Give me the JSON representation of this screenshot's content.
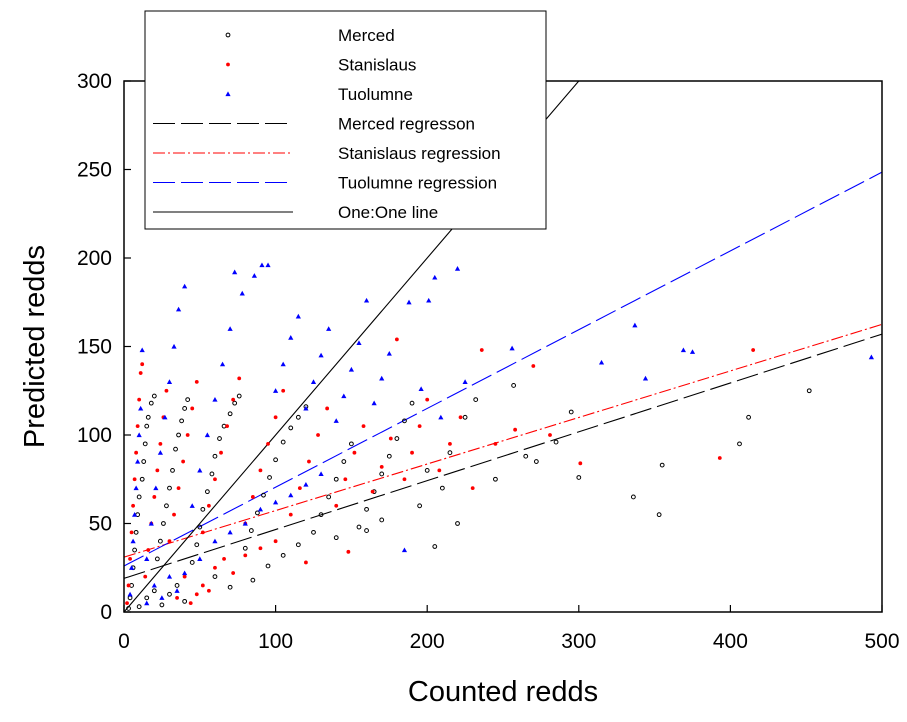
{
  "chart_data": {
    "type": "scatter",
    "title": "",
    "xlabel": "Counted redds",
    "ylabel": "Predicted redds",
    "xlim": [
      0,
      500
    ],
    "ylim": [
      0,
      300
    ],
    "xticks": [
      "0",
      "100",
      "200",
      "300",
      "400",
      "500"
    ],
    "yticks": [
      "0",
      "50",
      "100",
      "150",
      "200",
      "250",
      "300"
    ],
    "grid": false,
    "legend_position": "top-left",
    "series": [
      {
        "name": "Merced",
        "kind": "points",
        "marker": "open-circle",
        "color": "#000000",
        "points": [
          [
            3,
            2
          ],
          [
            4,
            8
          ],
          [
            5,
            15
          ],
          [
            6,
            25
          ],
          [
            7,
            35
          ],
          [
            8,
            45
          ],
          [
            9,
            55
          ],
          [
            10,
            65
          ],
          [
            12,
            75
          ],
          [
            13,
            85
          ],
          [
            14,
            95
          ],
          [
            15,
            105
          ],
          [
            16,
            110
          ],
          [
            18,
            118
          ],
          [
            20,
            122
          ],
          [
            22,
            30
          ],
          [
            24,
            40
          ],
          [
            26,
            50
          ],
          [
            28,
            60
          ],
          [
            30,
            70
          ],
          [
            32,
            80
          ],
          [
            34,
            92
          ],
          [
            36,
            100
          ],
          [
            38,
            108
          ],
          [
            40,
            115
          ],
          [
            42,
            120
          ],
          [
            45,
            28
          ],
          [
            48,
            38
          ],
          [
            50,
            48
          ],
          [
            52,
            58
          ],
          [
            55,
            68
          ],
          [
            58,
            78
          ],
          [
            60,
            88
          ],
          [
            63,
            98
          ],
          [
            66,
            105
          ],
          [
            70,
            112
          ],
          [
            73,
            118
          ],
          [
            76,
            122
          ],
          [
            80,
            36
          ],
          [
            84,
            46
          ],
          [
            88,
            56
          ],
          [
            92,
            66
          ],
          [
            96,
            76
          ],
          [
            100,
            86
          ],
          [
            105,
            96
          ],
          [
            110,
            104
          ],
          [
            115,
            110
          ],
          [
            120,
            116
          ],
          [
            125,
            45
          ],
          [
            130,
            55
          ],
          [
            135,
            65
          ],
          [
            140,
            75
          ],
          [
            145,
            85
          ],
          [
            150,
            95
          ],
          [
            155,
            48
          ],
          [
            160,
            58
          ],
          [
            165,
            68
          ],
          [
            170,
            78
          ],
          [
            175,
            88
          ],
          [
            180,
            98
          ],
          [
            185,
            108
          ],
          [
            190,
            118
          ],
          [
            195,
            60
          ],
          [
            200,
            80
          ],
          [
            205,
            37
          ],
          [
            210,
            70
          ],
          [
            215,
            90
          ],
          [
            220,
            50
          ],
          [
            225,
            110
          ],
          [
            232,
            120
          ],
          [
            245,
            75
          ],
          [
            257,
            128
          ],
          [
            265,
            88
          ],
          [
            272,
            85
          ],
          [
            285,
            96
          ],
          [
            295,
            113
          ],
          [
            300,
            76
          ],
          [
            336,
            65
          ],
          [
            353,
            55
          ],
          [
            355,
            83
          ],
          [
            406,
            95
          ],
          [
            412,
            110
          ],
          [
            452,
            125
          ],
          [
            10,
            3
          ],
          [
            15,
            8
          ],
          [
            20,
            12
          ],
          [
            25,
            4
          ],
          [
            30,
            10
          ],
          [
            35,
            15
          ],
          [
            40,
            6
          ],
          [
            60,
            20
          ],
          [
            70,
            14
          ],
          [
            85,
            18
          ],
          [
            95,
            26
          ],
          [
            105,
            32
          ],
          [
            115,
            38
          ],
          [
            140,
            42
          ],
          [
            160,
            46
          ],
          [
            170,
            52
          ]
        ]
      },
      {
        "name": "Stanislaus",
        "kind": "points",
        "marker": "dot",
        "color": "#ff0000",
        "points": [
          [
            2,
            5
          ],
          [
            3,
            15
          ],
          [
            4,
            30
          ],
          [
            5,
            45
          ],
          [
            6,
            60
          ],
          [
            7,
            75
          ],
          [
            8,
            90
          ],
          [
            9,
            105
          ],
          [
            10,
            120
          ],
          [
            11,
            135
          ],
          [
            12,
            140
          ],
          [
            14,
            20
          ],
          [
            16,
            35
          ],
          [
            18,
            50
          ],
          [
            20,
            65
          ],
          [
            22,
            80
          ],
          [
            24,
            95
          ],
          [
            26,
            110
          ],
          [
            28,
            125
          ],
          [
            30,
            40
          ],
          [
            33,
            55
          ],
          [
            36,
            70
          ],
          [
            39,
            85
          ],
          [
            42,
            100
          ],
          [
            45,
            115
          ],
          [
            48,
            130
          ],
          [
            52,
            45
          ],
          [
            56,
            60
          ],
          [
            60,
            75
          ],
          [
            64,
            90
          ],
          [
            68,
            105
          ],
          [
            72,
            120
          ],
          [
            76,
            132
          ],
          [
            80,
            50
          ],
          [
            85,
            65
          ],
          [
            90,
            80
          ],
          [
            95,
            95
          ],
          [
            100,
            110
          ],
          [
            105,
            125
          ],
          [
            110,
            55
          ],
          [
            116,
            70
          ],
          [
            122,
            85
          ],
          [
            128,
            100
          ],
          [
            134,
            115
          ],
          [
            140,
            60
          ],
          [
            146,
            75
          ],
          [
            152,
            90
          ],
          [
            158,
            105
          ],
          [
            164,
            68
          ],
          [
            170,
            82
          ],
          [
            176,
            98
          ],
          [
            180,
            154
          ],
          [
            185,
            75
          ],
          [
            190,
            90
          ],
          [
            195,
            105
          ],
          [
            200,
            120
          ],
          [
            208,
            80
          ],
          [
            215,
            95
          ],
          [
            222,
            110
          ],
          [
            230,
            70
          ],
          [
            236,
            148
          ],
          [
            245,
            95
          ],
          [
            258,
            103
          ],
          [
            270,
            139
          ],
          [
            281,
            100
          ],
          [
            301,
            84
          ],
          [
            393,
            87
          ],
          [
            415,
            148
          ],
          [
            44,
            5
          ],
          [
            48,
            10
          ],
          [
            52,
            15
          ],
          [
            56,
            12
          ],
          [
            60,
            25
          ],
          [
            66,
            30
          ],
          [
            72,
            22
          ],
          [
            120,
            28
          ],
          [
            148,
            34
          ],
          [
            100,
            40
          ],
          [
            90,
            36
          ],
          [
            80,
            32
          ],
          [
            40,
            20
          ],
          [
            35,
            8
          ]
        ]
      },
      {
        "name": "Tuolumne",
        "kind": "points",
        "marker": "filled-triangle",
        "color": "#0000ff",
        "points": [
          [
            4,
            10
          ],
          [
            5,
            25
          ],
          [
            6,
            40
          ],
          [
            7,
            55
          ],
          [
            8,
            70
          ],
          [
            9,
            85
          ],
          [
            10,
            100
          ],
          [
            11,
            115
          ],
          [
            12,
            148
          ],
          [
            15,
            30
          ],
          [
            18,
            50
          ],
          [
            21,
            70
          ],
          [
            24,
            90
          ],
          [
            27,
            110
          ],
          [
            30,
            130
          ],
          [
            33,
            150
          ],
          [
            36,
            171
          ],
          [
            40,
            184
          ],
          [
            45,
            60
          ],
          [
            50,
            80
          ],
          [
            55,
            100
          ],
          [
            60,
            120
          ],
          [
            65,
            140
          ],
          [
            70,
            160
          ],
          [
            73,
            192
          ],
          [
            78,
            180
          ],
          [
            86,
            190
          ],
          [
            91,
            196
          ],
          [
            95,
            196
          ],
          [
            100,
            125
          ],
          [
            105,
            140
          ],
          [
            110,
            155
          ],
          [
            115,
            167
          ],
          [
            120,
            115
          ],
          [
            125,
            130
          ],
          [
            130,
            145
          ],
          [
            135,
            160
          ],
          [
            140,
            108
          ],
          [
            145,
            122
          ],
          [
            150,
            137
          ],
          [
            155,
            152
          ],
          [
            160,
            176
          ],
          [
            165,
            118
          ],
          [
            170,
            132
          ],
          [
            175,
            146
          ],
          [
            185,
            35
          ],
          [
            188,
            175
          ],
          [
            196,
            126
          ],
          [
            201,
            176
          ],
          [
            205,
            189
          ],
          [
            209,
            110
          ],
          [
            220,
            194
          ],
          [
            225,
            130
          ],
          [
            256,
            149
          ],
          [
            315,
            141
          ],
          [
            337,
            162
          ],
          [
            344,
            132
          ],
          [
            369,
            148
          ],
          [
            375,
            147
          ],
          [
            493,
            144
          ],
          [
            15,
            5
          ],
          [
            20,
            15
          ],
          [
            25,
            8
          ],
          [
            30,
            20
          ],
          [
            35,
            12
          ],
          [
            40,
            22
          ],
          [
            50,
            30
          ],
          [
            60,
            40
          ],
          [
            70,
            45
          ],
          [
            80,
            50
          ],
          [
            90,
            58
          ],
          [
            100,
            62
          ],
          [
            110,
            66
          ],
          [
            120,
            72
          ],
          [
            130,
            78
          ]
        ]
      },
      {
        "name": "Merced regresson",
        "kind": "line",
        "dash": "long-dash",
        "color": "#000000",
        "intercept": 19,
        "slope": 0.276
      },
      {
        "name": "Stanislaus regression",
        "kind": "line",
        "dash": "dash-dot",
        "color": "#ff0000",
        "intercept": 31,
        "slope": 0.263
      },
      {
        "name": "Tuolumne regression",
        "kind": "line",
        "dash": "long-dash",
        "color": "#0000ff",
        "intercept": 26,
        "slope": 0.445
      },
      {
        "name": "One:One line",
        "kind": "line",
        "dash": "solid",
        "color": "#000000",
        "intercept": 0,
        "slope": 1
      }
    ]
  }
}
